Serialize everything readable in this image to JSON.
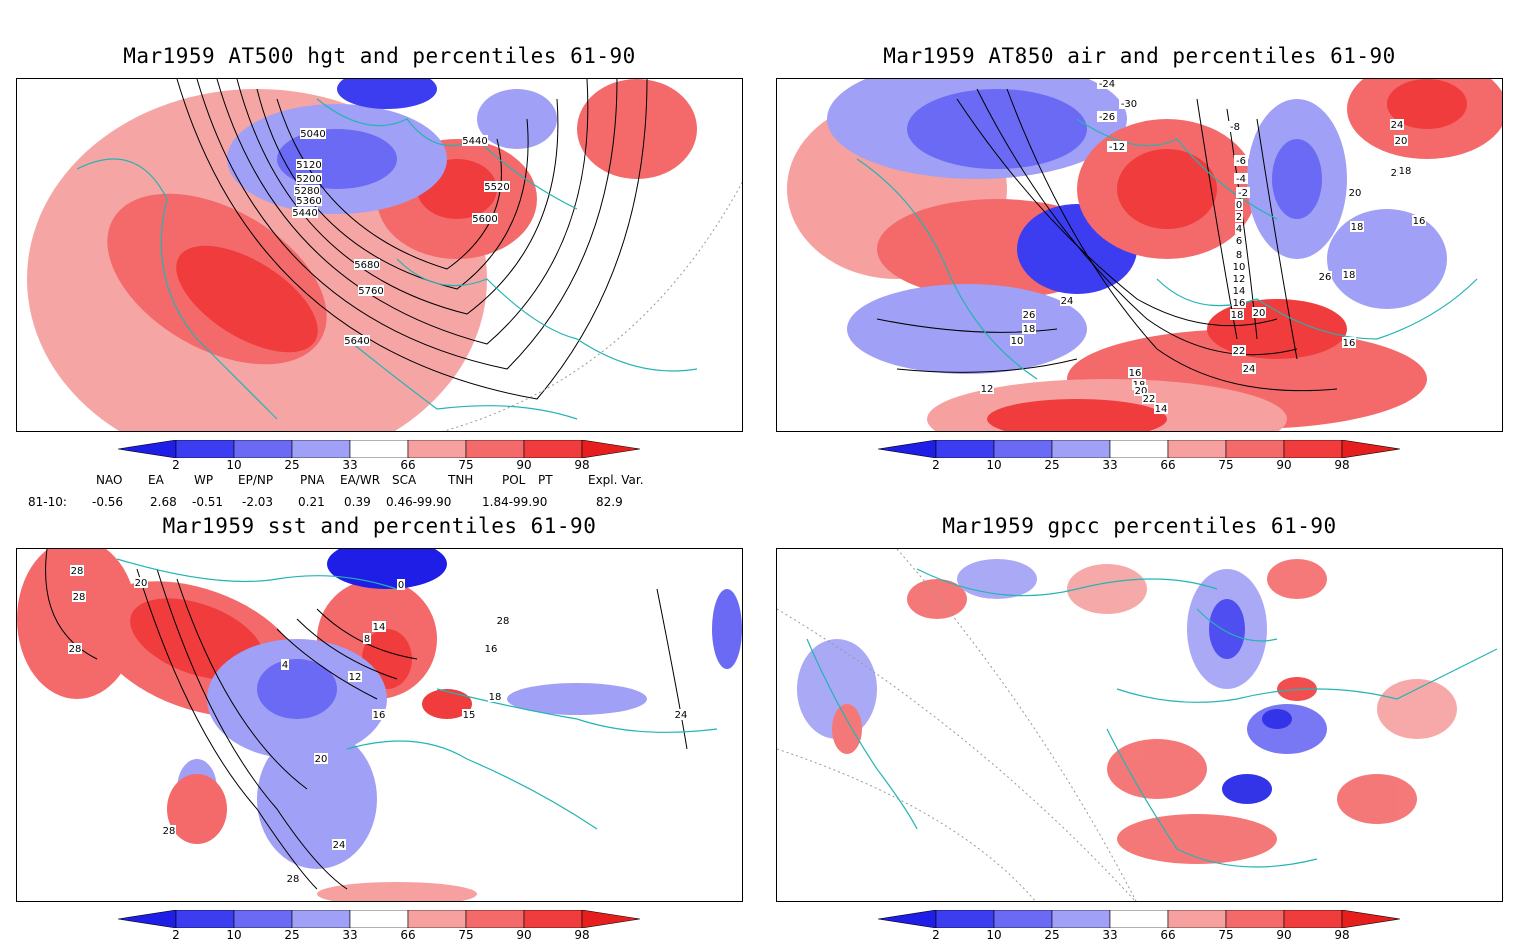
{
  "panels": {
    "hgt": {
      "title": "Mar1959 AT500 hgt and percentiles 61-90",
      "contour_labels": [
        "5040",
        "5120",
        "5200",
        "5280",
        "5360",
        "5440",
        "5440",
        "5520",
        "5600",
        "5680",
        "5760",
        "5640"
      ]
    },
    "air": {
      "title": "Mar1959 AT850 air and percentiles 61-90",
      "contour_labels": [
        "-24",
        "-30",
        "-26",
        "-12",
        "-8",
        "-6",
        "-4",
        "-2",
        "0",
        "2",
        "4",
        "6",
        "8",
        "10",
        "12",
        "14",
        "16",
        "18",
        "20",
        "22",
        "24",
        "26",
        "16",
        "18",
        "20",
        "22",
        "24",
        "26",
        "18",
        "10",
        "12",
        "14",
        "16",
        "18",
        "18",
        "20",
        "22",
        "24",
        "20",
        "18",
        "16"
      ]
    },
    "sst": {
      "title": "Mar1959 sst and percentiles 61-90",
      "contour_labels": [
        "28",
        "28",
        "28",
        "20",
        "0",
        "4",
        "8",
        "12",
        "14",
        "16",
        "16",
        "18",
        "15",
        "20",
        "24",
        "28",
        "28",
        "24",
        "28"
      ]
    },
    "gpcc": {
      "title": "Mar1959 gpcc percentiles 61-90"
    }
  },
  "colorbar": {
    "labels": [
      "2",
      "10",
      "25",
      "33",
      "66",
      "75",
      "90",
      "98"
    ],
    "colors": [
      "#1e1ee6",
      "#3c3cf0",
      "#6a6af4",
      "#a0a0f6",
      "#ffffff",
      "#f6a0a0",
      "#f46a6a",
      "#f03c3c",
      "#e61e1e"
    ]
  },
  "indices": {
    "headers": [
      "NAO",
      "EA",
      "WP",
      "EP/NP",
      "PNA",
      "EA/WR",
      "SCA",
      "TNH",
      "POL",
      "PT",
      "Expl. Var."
    ],
    "row_label": "81-10:",
    "values": [
      "-0.56",
      "2.68",
      "-0.51",
      "-2.03",
      "0.21",
      "0.39",
      "0.46-99.90",
      "1.84-99.90",
      "82.9"
    ]
  },
  "colors": {
    "coast": "#24b4b4",
    "warm": "#f03c3c",
    "cold": "#3c3cf0"
  }
}
